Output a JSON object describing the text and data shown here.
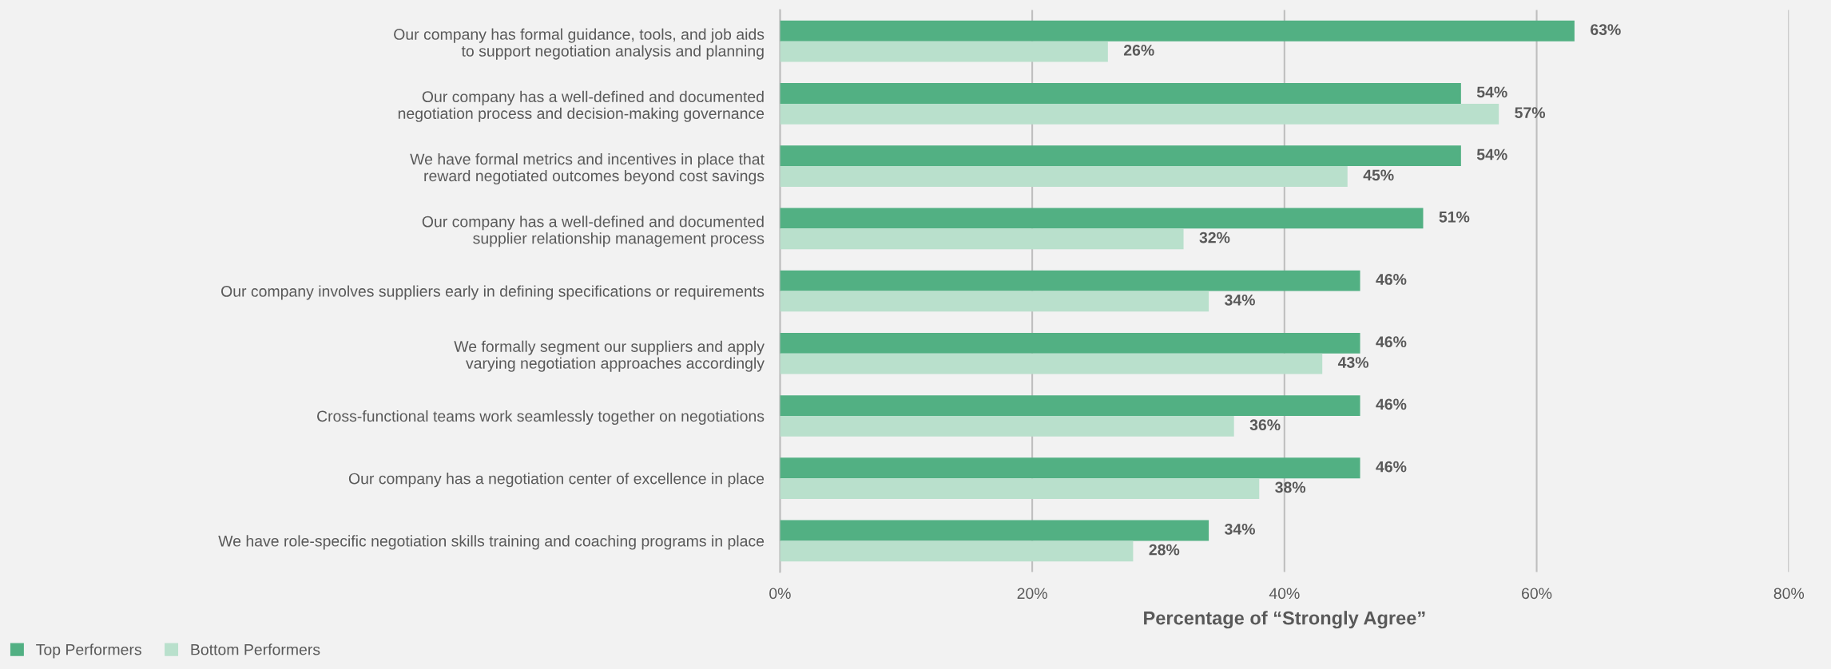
{
  "chart_data": {
    "type": "bar",
    "orientation": "horizontal",
    "xlabel": "Percentage of “Strongly Agree”",
    "categories": [
      "Our company has formal guidance, tools, and job aids\nto support negotiation analysis and planning",
      "Our company has a well-defined and documented\nnegotiation process and decision-making governance",
      "We have formal metrics and incentives in place that\nreward negotiated outcomes beyond cost savings",
      "Our company has a well-defined and documented\nsupplier relationship management process",
      "Our company involves suppliers early in defining specifications or requirements",
      "We formally segment our suppliers and apply\nvarying negotiation approaches accordingly",
      "Cross-functional teams work seamlessly together on negotiations",
      "Our company has a negotiation center of excellence in place",
      "We have role-specific negotiation skills training and coaching programs in place"
    ],
    "series": [
      {
        "name": "Top Performers",
        "color": "#52b083",
        "values": [
          63,
          54,
          54,
          51,
          46,
          46,
          46,
          46,
          34
        ],
        "value_labels": [
          "63%",
          "54%",
          "54%",
          "51%",
          "46%",
          "46%",
          "46%",
          "46%",
          "34%"
        ]
      },
      {
        "name": "Bottom Performers",
        "color": "#b9e0cc",
        "values": [
          26,
          57,
          45,
          32,
          34,
          43,
          36,
          38,
          28
        ],
        "value_labels": [
          "26%",
          "57%",
          "45%",
          "32%",
          "34%",
          "43%",
          "36%",
          "38%",
          "28%"
        ]
      }
    ],
    "xlim": [
      0,
      80
    ],
    "xticks": [
      {
        "value": 0,
        "label": "0%"
      },
      {
        "value": 20,
        "label": "20%"
      },
      {
        "value": 40,
        "label": "40%"
      },
      {
        "value": 60,
        "label": "60%"
      },
      {
        "value": 80,
        "label": "80%"
      }
    ],
    "grid": "x",
    "legend": "bottom left"
  }
}
